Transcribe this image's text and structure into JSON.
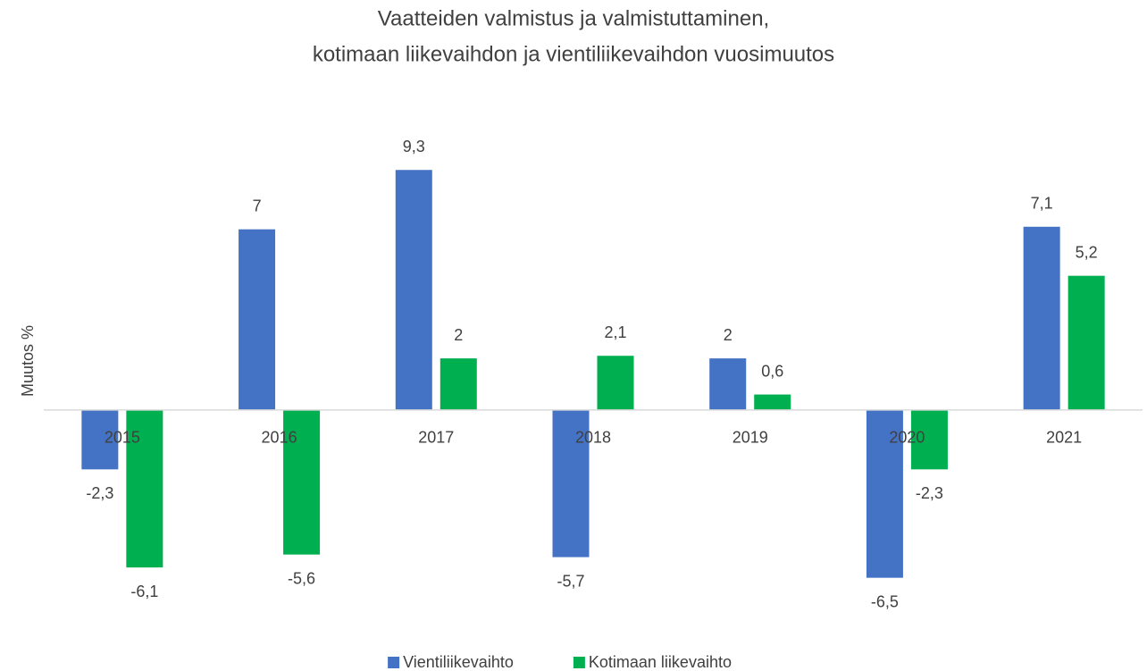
{
  "chart_data": {
    "type": "bar",
    "title": [
      "Vaatteiden valmistus ja valmistuttaminen,",
      "kotimaan liikevaihdon ja vientiliikevaihdon vuosimuutos"
    ],
    "y_label": "Muutos %",
    "categories": [
      "2015",
      "2016",
      "2017",
      "2018",
      "2019",
      "2020",
      "2021"
    ],
    "series": [
      {
        "name": "Vientiliikevaihto",
        "color": "#4472c4",
        "values": [
          -2.3,
          7,
          9.3,
          -5.7,
          2,
          -6.5,
          7.1
        ],
        "value_labels": [
          "-2,3",
          "7",
          "9,3",
          "-5,7",
          "2",
          "-6,5",
          "7,1"
        ]
      },
      {
        "name": "Kotimaan liikevaihto",
        "color": "#00b050",
        "values": [
          -6.1,
          -5.6,
          2,
          2.1,
          0.6,
          -2.3,
          5.2
        ],
        "value_labels": [
          "-6,1",
          "-5,6",
          "2",
          "2,1",
          "0,6",
          "-2,3",
          "5,2"
        ]
      }
    ],
    "ylim": [
      -8,
      10
    ],
    "legend": "bottom"
  }
}
